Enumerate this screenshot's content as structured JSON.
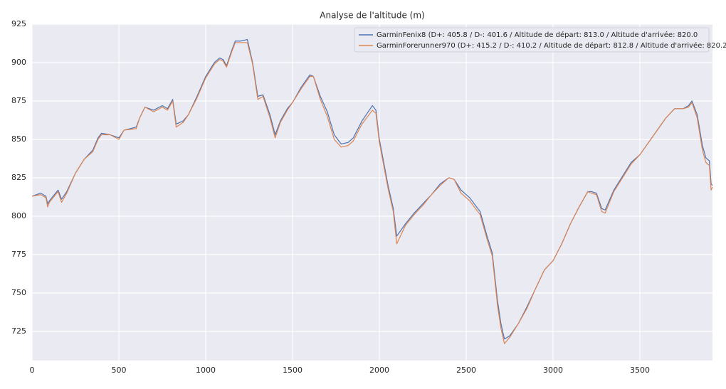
{
  "chart_data": {
    "type": "line",
    "title": "Analyse de l'altitude (m)",
    "x": [
      0,
      50,
      80,
      90,
      100,
      150,
      170,
      200,
      250,
      300,
      350,
      380,
      400,
      450,
      500,
      530,
      600,
      620,
      650,
      700,
      750,
      780,
      810,
      830,
      870,
      900,
      950,
      1000,
      1050,
      1080,
      1100,
      1120,
      1150,
      1170,
      1200,
      1240,
      1270,
      1300,
      1330,
      1370,
      1400,
      1430,
      1470,
      1500,
      1550,
      1600,
      1620,
      1660,
      1700,
      1740,
      1780,
      1820,
      1850,
      1900,
      1960,
      1980,
      2000,
      2050,
      2080,
      2100,
      2150,
      2200,
      2250,
      2300,
      2350,
      2400,
      2430,
      2470,
      2520,
      2580,
      2620,
      2650,
      2680,
      2700,
      2720,
      2750,
      2800,
      2850,
      2900,
      2950,
      3000,
      3050,
      3100,
      3150,
      3200,
      3220,
      3250,
      3280,
      3300,
      3350,
      3400,
      3450,
      3500,
      3550,
      3600,
      3650,
      3700,
      3750,
      3780,
      3800,
      3830,
      3860,
      3880,
      3900,
      3910,
      3918
    ],
    "series": [
      {
        "name": "GarminFenix8 (D+: 405.8 / D-: 401.6 / Altitude de départ: 813.0 / Altitude d'arrivée: 820.0",
        "color": "#4c72b0",
        "values": [
          813,
          815,
          813,
          808,
          810,
          817,
          811,
          816,
          828,
          837,
          843,
          851,
          854,
          853,
          851,
          856,
          858,
          864,
          871,
          869,
          872,
          870,
          876,
          860,
          862,
          866,
          878,
          891,
          900,
          903,
          902,
          898,
          908,
          914,
          914,
          915,
          900,
          878,
          879,
          866,
          853,
          862,
          870,
          874,
          884,
          892,
          891,
          878,
          868,
          853,
          847,
          848,
          851,
          862,
          872,
          869,
          850,
          820,
          805,
          787,
          795,
          802,
          808,
          814,
          821,
          825,
          824,
          817,
          812,
          803,
          787,
          776,
          745,
          730,
          720,
          722,
          730,
          741,
          753,
          765,
          771,
          782,
          795,
          806,
          816,
          816,
          815,
          805,
          804,
          817,
          826,
          835,
          840,
          848,
          856,
          864,
          870,
          870,
          872,
          875,
          866,
          846,
          838,
          836,
          821,
          820
        ]
      },
      {
        "name": "GarminForerunner970 (D+: 415.2 / D-: 410.2 / Altitude de départ: 812.8 / Altitude d'arrivée: 820.2",
        "color": "#dd8452",
        "values": [
          813,
          814,
          812,
          806,
          809,
          816,
          809,
          815,
          828,
          837,
          842,
          850,
          853,
          853,
          850,
          856,
          857,
          864,
          871,
          868,
          871,
          869,
          875,
          858,
          861,
          866,
          877,
          890,
          899,
          902,
          901,
          897,
          907,
          913,
          913,
          913,
          899,
          876,
          878,
          864,
          851,
          861,
          869,
          874,
          883,
          891,
          891,
          876,
          865,
          850,
          845,
          846,
          849,
          860,
          869,
          867,
          848,
          818,
          803,
          782,
          794,
          801,
          807,
          814,
          820,
          825,
          824,
          815,
          810,
          801,
          785,
          774,
          742,
          727,
          717,
          721,
          730,
          740,
          753,
          765,
          771,
          782,
          795,
          806,
          816,
          815,
          814,
          803,
          802,
          816,
          825,
          834,
          840,
          848,
          856,
          864,
          870,
          870,
          871,
          874,
          864,
          843,
          835,
          833,
          817,
          819
        ]
      }
    ],
    "xlim": [
      0,
      3918
    ],
    "ylim": [
      706,
      925
    ],
    "xticks": [
      0,
      500,
      1000,
      1500,
      2000,
      2500,
      3000,
      3500
    ],
    "yticks": [
      725,
      750,
      775,
      800,
      825,
      850,
      875,
      900,
      925
    ],
    "grid": true,
    "legend": "upper right"
  }
}
